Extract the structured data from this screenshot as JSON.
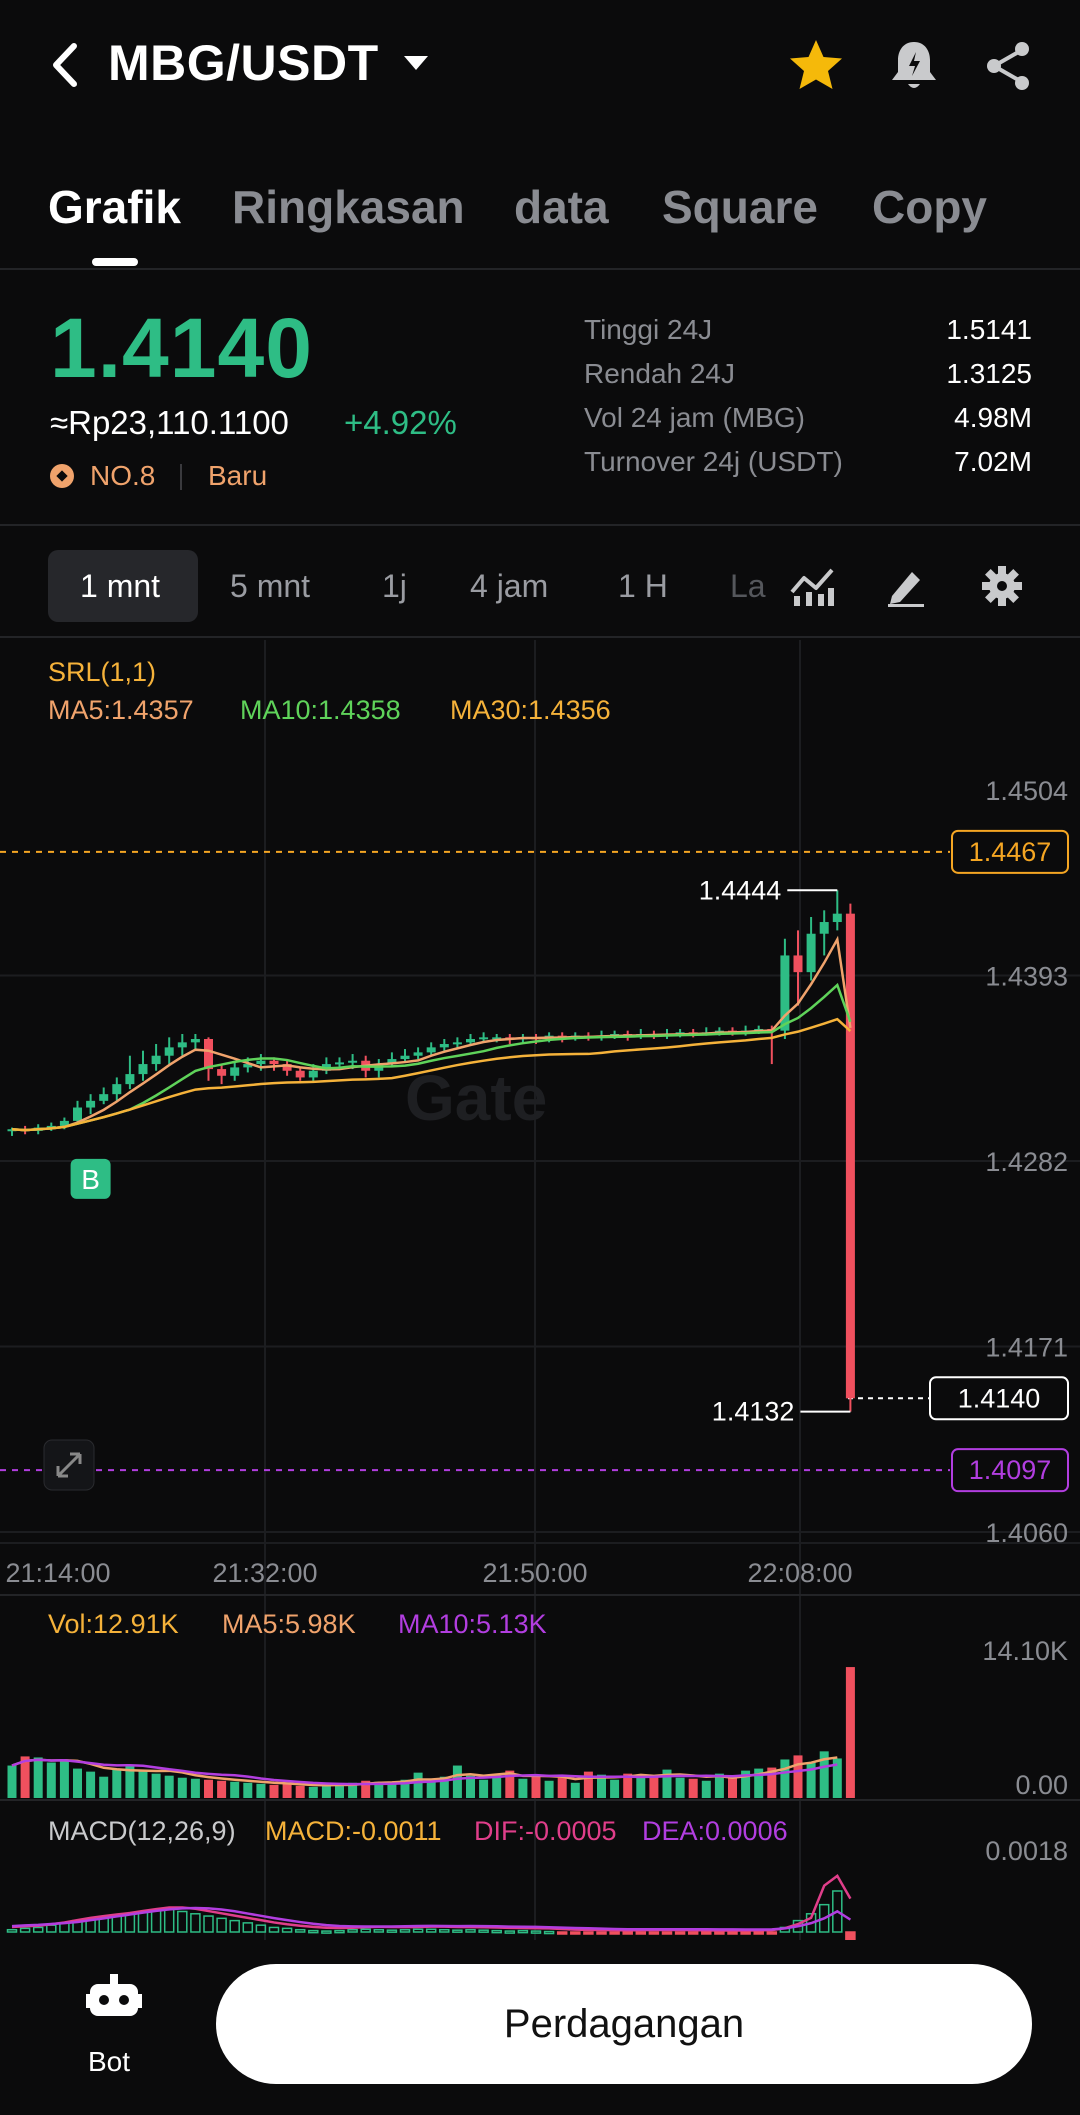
{
  "header": {
    "pair": "MBG/USDT",
    "icons": [
      "back-icon",
      "caret-down-icon",
      "star-icon",
      "bell-icon",
      "share-icon"
    ],
    "star_color": "#f5b90a"
  },
  "tabs": [
    {
      "label": "Grafik",
      "active": true
    },
    {
      "label": "Ringkasan"
    },
    {
      "label": "data"
    },
    {
      "label": "Square"
    },
    {
      "label": "Copy"
    }
  ],
  "ticker": {
    "price": "1.4140",
    "fiat": "≈Rp23,110.1100",
    "change": "+4.92%",
    "rank": "NO.8",
    "badge": "Baru",
    "stats": [
      {
        "label": "Tinggi 24J",
        "value": "1.5141"
      },
      {
        "label": "Rendah 24J",
        "value": "1.3125"
      },
      {
        "label": "Vol 24 jam (MBG)",
        "value": "4.98M"
      },
      {
        "label": "Turnover 24j (USDT)",
        "value": "7.02M"
      }
    ]
  },
  "timeframes": [
    "1 mnt",
    "5 mnt",
    "1j",
    "4 jam",
    "1 H",
    "La"
  ],
  "timeframe_active": "1 mnt",
  "chart_data": [
    {
      "type": "candlestick",
      "indicators": {
        "srl": "SRL(1,1)",
        "ma5": "MA5:1.4357",
        "ma10": "MA10:1.4358",
        "ma30": "MA30:1.4356"
      },
      "watermark": "Gate",
      "y_ticks": [
        "1.4504",
        "1.4393",
        "1.4282",
        "1.4171",
        "1.4060"
      ],
      "ylim": [
        1.406,
        1.4504
      ],
      "x_ticks": [
        "21:14:00",
        "21:32:00",
        "21:50:00",
        "22:08:00"
      ],
      "price_lines": [
        {
          "label": "1.4467",
          "value": 1.4467,
          "color": "#f5a623"
        },
        {
          "label": "1.4097",
          "value": 1.4097,
          "color": "#b23ee0"
        }
      ],
      "last_price": {
        "label": "1.4140",
        "value": 1.414
      },
      "high_marker": {
        "label": "1.4444",
        "value": 1.4444
      },
      "low_marker": {
        "label": "1.4132",
        "value": 1.4132
      },
      "buy_marker": "B",
      "candles": [
        [
          1.43,
          1.4301,
          1.4297,
          1.4302
        ],
        [
          1.4301,
          1.43,
          1.4298,
          1.4303
        ],
        [
          1.43,
          1.4302,
          1.4298,
          1.4304
        ],
        [
          1.4302,
          1.4303,
          1.43,
          1.4305
        ],
        [
          1.4303,
          1.4306,
          1.4301,
          1.4308
        ],
        [
          1.4306,
          1.4314,
          1.4304,
          1.4318
        ],
        [
          1.4314,
          1.4318,
          1.431,
          1.4322
        ],
        [
          1.4318,
          1.4322,
          1.4316,
          1.4326
        ],
        [
          1.4322,
          1.4328,
          1.4318,
          1.4332
        ],
        [
          1.4328,
          1.4334,
          1.4325,
          1.4345
        ],
        [
          1.4334,
          1.434,
          1.433,
          1.4348
        ],
        [
          1.434,
          1.4345,
          1.4336,
          1.4352
        ],
        [
          1.4345,
          1.435,
          1.434,
          1.4356
        ],
        [
          1.435,
          1.4353,
          1.4345,
          1.4358
        ],
        [
          1.4353,
          1.4355,
          1.4349,
          1.4358
        ],
        [
          1.4355,
          1.4337,
          1.433,
          1.4356
        ],
        [
          1.4337,
          1.4333,
          1.4328,
          1.434
        ],
        [
          1.4333,
          1.4338,
          1.433,
          1.4342
        ],
        [
          1.4338,
          1.434,
          1.4335,
          1.4344
        ],
        [
          1.434,
          1.4342,
          1.4336,
          1.4346
        ],
        [
          1.4342,
          1.434,
          1.4336,
          1.4344
        ],
        [
          1.434,
          1.4336,
          1.4333,
          1.4343
        ],
        [
          1.4336,
          1.4332,
          1.433,
          1.4338
        ],
        [
          1.4332,
          1.4336,
          1.433,
          1.434
        ],
        [
          1.4336,
          1.434,
          1.4334,
          1.4344
        ],
        [
          1.434,
          1.4341,
          1.4337,
          1.4344
        ],
        [
          1.4341,
          1.4342,
          1.4337,
          1.4346
        ],
        [
          1.4342,
          1.4336,
          1.4332,
          1.4345
        ],
        [
          1.4336,
          1.434,
          1.4332,
          1.4343
        ],
        [
          1.434,
          1.4343,
          1.4338,
          1.4347
        ],
        [
          1.4343,
          1.4345,
          1.4341,
          1.4349
        ],
        [
          1.4345,
          1.4347,
          1.4343,
          1.435
        ],
        [
          1.4347,
          1.435,
          1.4345,
          1.4353
        ],
        [
          1.435,
          1.4352,
          1.4348,
          1.4355
        ],
        [
          1.4352,
          1.4353,
          1.4349,
          1.4356
        ],
        [
          1.4353,
          1.4355,
          1.4351,
          1.4358
        ],
        [
          1.4355,
          1.4356,
          1.4353,
          1.4359
        ],
        [
          1.4356,
          1.4356,
          1.4353,
          1.4358
        ],
        [
          1.4356,
          1.4355,
          1.4352,
          1.4358
        ],
        [
          1.4355,
          1.4356,
          1.4353,
          1.4358
        ],
        [
          1.4356,
          1.4355,
          1.4352,
          1.4358
        ],
        [
          1.4355,
          1.4357,
          1.4353,
          1.4359
        ],
        [
          1.4357,
          1.4356,
          1.4353,
          1.4359
        ],
        [
          1.4356,
          1.4357,
          1.4354,
          1.4359
        ],
        [
          1.4357,
          1.4356,
          1.4354,
          1.4359
        ],
        [
          1.4356,
          1.4357,
          1.4354,
          1.436
        ],
        [
          1.4357,
          1.4358,
          1.4355,
          1.436
        ],
        [
          1.4358,
          1.4357,
          1.4354,
          1.436
        ],
        [
          1.4357,
          1.4358,
          1.4355,
          1.4361
        ],
        [
          1.4358,
          1.4357,
          1.4355,
          1.436
        ],
        [
          1.4357,
          1.4358,
          1.4355,
          1.4361
        ],
        [
          1.4358,
          1.4359,
          1.4356,
          1.4361
        ],
        [
          1.4359,
          1.4358,
          1.4356,
          1.4361
        ],
        [
          1.4358,
          1.4359,
          1.4357,
          1.4362
        ],
        [
          1.4359,
          1.436,
          1.4357,
          1.4362
        ],
        [
          1.436,
          1.4359,
          1.4357,
          1.4362
        ],
        [
          1.4359,
          1.436,
          1.4357,
          1.4363
        ],
        [
          1.436,
          1.4361,
          1.4358,
          1.4363
        ],
        [
          1.4361,
          1.436,
          1.434,
          1.4363
        ],
        [
          1.436,
          1.4405,
          1.4355,
          1.4415
        ],
        [
          1.4405,
          1.4395,
          1.4375,
          1.442
        ],
        [
          1.4395,
          1.4418,
          1.439,
          1.4428
        ],
        [
          1.4418,
          1.4425,
          1.4405,
          1.4432
        ],
        [
          1.4425,
          1.443,
          1.442,
          1.4444
        ],
        [
          1.443,
          1.414,
          1.4132,
          1.4436
        ]
      ],
      "ma_note": "MA5, MA10, MA30 lines"
    },
    {
      "type": "bar",
      "indicators": {
        "vol": "Vol:12.91K",
        "ma5": "MA5:5.98K",
        "ma10": "MA10:5.13K"
      },
      "y_ticks": [
        "14.10K",
        "0.00"
      ],
      "ylim": [
        0,
        14100
      ],
      "values": [
        3200,
        4100,
        4000,
        3500,
        3800,
        2900,
        2600,
        2100,
        2800,
        3300,
        2700,
        2400,
        2200,
        2000,
        1900,
        1800,
        1700,
        1600,
        1500,
        1400,
        1300,
        1400,
        1200,
        1100,
        1300,
        1400,
        1500,
        1700,
        1600,
        1500,
        1800,
        2500,
        1700,
        2100,
        3200,
        2200,
        1800,
        2300,
        2700,
        1900,
        2200,
        1700,
        2000,
        1500,
        2600,
        2300,
        1800,
        2400,
        2300,
        2100,
        2800,
        2000,
        1900,
        1700,
        2400,
        2000,
        2700,
        2900,
        3000,
        3800,
        4200,
        3500,
        4600,
        3900,
        12910
      ],
      "colors": "mixed green/red"
    },
    {
      "type": "bar",
      "indicators": {
        "label": "MACD(12,26,9)",
        "macd": "MACD:-0.0011",
        "dif": "DIF:-0.0005",
        "dea": "DEA:0.0006"
      },
      "y_ticks": [
        "0.0018"
      ],
      "values": [
        5e-05,
        8e-05,
        0.0001,
        0.00015,
        0.0002,
        0.00025,
        0.0003,
        0.00032,
        0.00035,
        0.0004,
        0.00045,
        0.00048,
        0.0005,
        0.00045,
        0.0004,
        0.00035,
        0.0003,
        0.00025,
        0.0002,
        0.00015,
        0.0001,
        8e-05,
        5e-05,
        3e-05,
        2e-05,
        3e-05,
        5e-05,
        6e-05,
        5e-05,
        4e-05,
        5e-05,
        6e-05,
        6e-05,
        5e-05,
        4e-05,
        5e-05,
        4e-05,
        3e-05,
        2e-05,
        3e-05,
        2e-05,
        1e-05,
        -1e-05,
        -2e-05,
        -1e-05,
        -2e-05,
        -3e-05,
        -2e-05,
        -1e-05,
        -2e-05,
        -1e-05,
        -2e-05,
        -3e-05,
        -2e-05,
        -3e-05,
        -2e-05,
        -3e-05,
        -2e-05,
        -1e-05,
        0.0001,
        0.00025,
        0.0004,
        0.0006,
        0.0009,
        -0.0011
      ]
    }
  ],
  "bottom": {
    "bot_label": "Bot",
    "trade_button": "Perdagangan"
  },
  "colors": {
    "up": "#2ebd85",
    "down": "#f0505e",
    "ma5": "#f0a36c",
    "ma10": "#5fd35a",
    "ma30": "#f5b23a",
    "macd_dea": "#b23ee0",
    "dif": "#e03e8a"
  }
}
